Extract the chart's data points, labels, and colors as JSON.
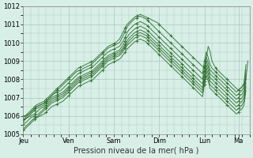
{
  "title": "",
  "xlabel": "Pression niveau de la mer( hPa )",
  "ylabel": "",
  "background_color": "#d8efe8",
  "plot_bg_color": "#d8efe8",
  "grid_color": "#a8c8b8",
  "line_color": "#2d6e2d",
  "marker_color": "#2d6e2d",
  "ylim": [
    1005,
    1012
  ],
  "yticks": [
    1005,
    1006,
    1007,
    1008,
    1009,
    1010,
    1011,
    1012
  ],
  "xtick_labels": [
    "Jeu",
    "Ven",
    "Sam",
    "Dim",
    "Lun",
    "Ma"
  ],
  "xtick_positions": [
    0,
    24,
    48,
    72,
    96,
    114
  ],
  "xlim": [
    0,
    120
  ],
  "series": [
    [
      1006.0,
      1006.0,
      1006.1,
      1006.2,
      1006.3,
      1006.4,
      1006.5,
      1006.6,
      1006.65,
      1006.7,
      1006.75,
      1006.8,
      1006.9,
      1007.0,
      1007.1,
      1007.2,
      1007.3,
      1007.4,
      1007.5,
      1007.6,
      1007.7,
      1007.8,
      1007.9,
      1008.0,
      1008.1,
      1008.2,
      1008.3,
      1008.4,
      1008.5,
      1008.6,
      1008.65,
      1008.7,
      1008.75,
      1008.8,
      1008.85,
      1008.9,
      1008.95,
      1009.0,
      1009.1,
      1009.2,
      1009.3,
      1009.4,
      1009.5,
      1009.6,
      1009.7,
      1009.8,
      1009.85,
      1009.9,
      1009.95,
      1010.0,
      1010.1,
      1010.2,
      1010.4,
      1010.6,
      1010.8,
      1011.0,
      1011.1,
      1011.2,
      1011.3,
      1011.4,
      1011.45,
      1011.5,
      1011.55,
      1011.5,
      1011.45,
      1011.4,
      1011.35,
      1011.3,
      1011.25,
      1011.2,
      1011.15,
      1011.1,
      1011.0,
      1010.9,
      1010.8,
      1010.7,
      1010.6,
      1010.5,
      1010.4,
      1010.3,
      1010.2,
      1010.1,
      1010.0,
      1009.9,
      1009.8,
      1009.7,
      1009.6,
      1009.5,
      1009.4,
      1009.3,
      1009.2,
      1009.1,
      1009.0,
      1008.9,
      1008.8,
      1008.7,
      1008.6,
      1009.2,
      1009.8,
      1009.5,
      1009.0,
      1008.8,
      1008.6,
      1008.5,
      1008.4,
      1008.3,
      1008.2,
      1008.1,
      1008.0,
      1007.9,
      1007.8,
      1007.7,
      1007.6,
      1007.5,
      1007.4,
      1007.5,
      1007.6,
      1007.7,
      1008.0,
      1009.0
    ],
    [
      1006.0,
      1006.0,
      1006.05,
      1006.1,
      1006.2,
      1006.3,
      1006.4,
      1006.5,
      1006.55,
      1006.6,
      1006.65,
      1006.7,
      1006.8,
      1006.9,
      1007.0,
      1007.1,
      1007.2,
      1007.3,
      1007.4,
      1007.5,
      1007.6,
      1007.7,
      1007.8,
      1007.9,
      1008.0,
      1008.1,
      1008.2,
      1008.3,
      1008.4,
      1008.45,
      1008.5,
      1008.55,
      1008.6,
      1008.65,
      1008.7,
      1008.75,
      1008.8,
      1008.9,
      1009.0,
      1009.1,
      1009.2,
      1009.3,
      1009.4,
      1009.5,
      1009.6,
      1009.7,
      1009.75,
      1009.8,
      1009.85,
      1009.9,
      1009.95,
      1010.0,
      1010.2,
      1010.4,
      1010.6,
      1010.85,
      1011.0,
      1011.1,
      1011.2,
      1011.3,
      1011.35,
      1011.4,
      1011.45,
      1011.4,
      1011.35,
      1011.3,
      1011.2,
      1011.1,
      1011.0,
      1010.9,
      1010.8,
      1010.7,
      1010.6,
      1010.5,
      1010.4,
      1010.3,
      1010.2,
      1010.1,
      1010.0,
      1009.9,
      1009.8,
      1009.7,
      1009.6,
      1009.5,
      1009.4,
      1009.3,
      1009.2,
      1009.1,
      1009.0,
      1008.9,
      1008.8,
      1008.7,
      1008.6,
      1008.5,
      1008.4,
      1008.3,
      1009.0,
      1009.5,
      1009.2,
      1008.8,
      1008.6,
      1008.5,
      1008.4,
      1008.3,
      1008.2,
      1008.1,
      1008.0,
      1007.9,
      1007.8,
      1007.7,
      1007.6,
      1007.5,
      1007.4,
      1007.3,
      1007.4,
      1007.5,
      1007.6,
      1007.8,
      1008.8
    ],
    [
      1005.8,
      1005.9,
      1006.0,
      1006.1,
      1006.2,
      1006.3,
      1006.4,
      1006.5,
      1006.55,
      1006.6,
      1006.65,
      1006.7,
      1006.8,
      1006.9,
      1007.0,
      1007.1,
      1007.2,
      1007.25,
      1007.3,
      1007.35,
      1007.4,
      1007.5,
      1007.6,
      1007.7,
      1007.8,
      1007.9,
      1008.0,
      1008.1,
      1008.2,
      1008.3,
      1008.35,
      1008.4,
      1008.45,
      1008.5,
      1008.55,
      1008.6,
      1008.65,
      1008.7,
      1008.8,
      1008.9,
      1009.0,
      1009.1,
      1009.2,
      1009.3,
      1009.4,
      1009.5,
      1009.55,
      1009.6,
      1009.65,
      1009.7,
      1009.75,
      1009.8,
      1009.95,
      1010.1,
      1010.3,
      1010.55,
      1010.7,
      1010.8,
      1010.9,
      1011.0,
      1011.05,
      1011.1,
      1011.15,
      1011.1,
      1011.05,
      1011.0,
      1010.9,
      1010.8,
      1010.7,
      1010.6,
      1010.5,
      1010.4,
      1010.3,
      1010.2,
      1010.1,
      1010.0,
      1009.9,
      1009.8,
      1009.7,
      1009.6,
      1009.5,
      1009.4,
      1009.3,
      1009.2,
      1009.1,
      1009.0,
      1008.9,
      1008.8,
      1008.7,
      1008.6,
      1008.5,
      1008.4,
      1008.3,
      1008.2,
      1008.1,
      1008.0,
      1008.7,
      1009.2,
      1008.9,
      1008.5,
      1008.4,
      1008.3,
      1008.2,
      1008.1,
      1008.0,
      1007.9,
      1007.8,
      1007.7,
      1007.6,
      1007.5,
      1007.4,
      1007.3,
      1007.2,
      1007.1,
      1007.2,
      1007.3,
      1007.4,
      1007.6,
      1008.5
    ],
    [
      1005.8,
      1005.85,
      1005.9,
      1006.0,
      1006.1,
      1006.2,
      1006.3,
      1006.4,
      1006.45,
      1006.5,
      1006.55,
      1006.6,
      1006.7,
      1006.8,
      1006.9,
      1007.0,
      1007.05,
      1007.1,
      1007.15,
      1007.2,
      1007.25,
      1007.3,
      1007.4,
      1007.5,
      1007.6,
      1007.7,
      1007.8,
      1007.9,
      1008.0,
      1008.1,
      1008.15,
      1008.2,
      1008.25,
      1008.3,
      1008.35,
      1008.4,
      1008.45,
      1008.5,
      1008.6,
      1008.7,
      1008.8,
      1008.9,
      1009.0,
      1009.1,
      1009.2,
      1009.3,
      1009.35,
      1009.4,
      1009.45,
      1009.5,
      1009.55,
      1009.6,
      1009.75,
      1009.9,
      1010.1,
      1010.3,
      1010.45,
      1010.55,
      1010.65,
      1010.75,
      1010.8,
      1010.85,
      1010.9,
      1010.85,
      1010.8,
      1010.75,
      1010.65,
      1010.55,
      1010.45,
      1010.35,
      1010.25,
      1010.15,
      1010.05,
      1009.95,
      1009.85,
      1009.75,
      1009.65,
      1009.55,
      1009.45,
      1009.35,
      1009.25,
      1009.15,
      1009.05,
      1008.95,
      1008.85,
      1008.75,
      1008.65,
      1008.55,
      1008.45,
      1008.35,
      1008.25,
      1008.15,
      1008.05,
      1007.95,
      1007.85,
      1007.75,
      1008.45,
      1009.0,
      1008.7,
      1008.3,
      1008.2,
      1008.1,
      1008.0,
      1007.9,
      1007.8,
      1007.7,
      1007.6,
      1007.5,
      1007.4,
      1007.3,
      1007.2,
      1007.1,
      1007.0,
      1006.9,
      1007.0,
      1007.1,
      1007.2,
      1007.4,
      1008.2
    ],
    [
      1005.7,
      1005.8,
      1005.9,
      1005.95,
      1006.0,
      1006.05,
      1006.1,
      1006.2,
      1006.3,
      1006.4,
      1006.45,
      1006.5,
      1006.6,
      1006.7,
      1006.8,
      1006.9,
      1006.95,
      1007.0,
      1007.05,
      1007.1,
      1007.15,
      1007.2,
      1007.3,
      1007.4,
      1007.5,
      1007.6,
      1007.7,
      1007.8,
      1007.9,
      1008.0,
      1008.05,
      1008.1,
      1008.15,
      1008.2,
      1008.25,
      1008.3,
      1008.35,
      1008.4,
      1008.5,
      1008.6,
      1008.7,
      1008.8,
      1008.9,
      1009.0,
      1009.1,
      1009.2,
      1009.25,
      1009.3,
      1009.35,
      1009.4,
      1009.45,
      1009.5,
      1009.6,
      1009.75,
      1009.9,
      1010.1,
      1010.25,
      1010.35,
      1010.45,
      1010.55,
      1010.6,
      1010.65,
      1010.7,
      1010.65,
      1010.6,
      1010.55,
      1010.45,
      1010.35,
      1010.25,
      1010.15,
      1010.05,
      1009.95,
      1009.85,
      1009.75,
      1009.65,
      1009.55,
      1009.45,
      1009.35,
      1009.25,
      1009.15,
      1009.05,
      1008.95,
      1008.85,
      1008.75,
      1008.65,
      1008.55,
      1008.45,
      1008.35,
      1008.25,
      1008.15,
      1008.05,
      1007.95,
      1007.85,
      1007.75,
      1007.65,
      1007.55,
      1008.2,
      1008.8,
      1008.5,
      1008.1,
      1008.0,
      1007.9,
      1007.8,
      1007.7,
      1007.6,
      1007.5,
      1007.4,
      1007.3,
      1007.2,
      1007.1,
      1007.0,
      1006.9,
      1006.8,
      1006.7,
      1006.8,
      1006.9,
      1007.0,
      1007.2,
      1008.0
    ],
    [
      1005.5,
      1005.6,
      1005.7,
      1005.8,
      1005.9,
      1005.95,
      1006.0,
      1006.05,
      1006.1,
      1006.2,
      1006.3,
      1006.4,
      1006.5,
      1006.6,
      1006.7,
      1006.8,
      1006.85,
      1006.9,
      1006.95,
      1007.0,
      1007.05,
      1007.1,
      1007.2,
      1007.3,
      1007.4,
      1007.5,
      1007.6,
      1007.7,
      1007.8,
      1007.9,
      1007.95,
      1008.0,
      1008.05,
      1008.1,
      1008.15,
      1008.2,
      1008.25,
      1008.3,
      1008.4,
      1008.5,
      1008.6,
      1008.7,
      1008.8,
      1008.9,
      1009.0,
      1009.1,
      1009.15,
      1009.2,
      1009.25,
      1009.3,
      1009.35,
      1009.4,
      1009.5,
      1009.65,
      1009.8,
      1009.95,
      1010.1,
      1010.2,
      1010.3,
      1010.4,
      1010.45,
      1010.5,
      1010.55,
      1010.5,
      1010.45,
      1010.4,
      1010.3,
      1010.2,
      1010.1,
      1010.0,
      1009.9,
      1009.8,
      1009.7,
      1009.6,
      1009.5,
      1009.4,
      1009.3,
      1009.2,
      1009.1,
      1009.0,
      1008.9,
      1008.8,
      1008.7,
      1008.6,
      1008.5,
      1008.4,
      1008.3,
      1008.2,
      1008.1,
      1008.0,
      1007.9,
      1007.8,
      1007.7,
      1007.6,
      1007.5,
      1007.4,
      1008.0,
      1008.6,
      1008.3,
      1007.9,
      1007.8,
      1007.7,
      1007.6,
      1007.5,
      1007.4,
      1007.3,
      1007.2,
      1007.1,
      1007.0,
      1006.9,
      1006.8,
      1006.7,
      1006.6,
      1006.5,
      1006.6,
      1006.7,
      1006.8,
      1007.0,
      1007.8
    ],
    [
      1005.3,
      1005.4,
      1005.5,
      1005.6,
      1005.7,
      1005.8,
      1005.9,
      1005.95,
      1006.0,
      1006.1,
      1006.2,
      1006.3,
      1006.4,
      1006.5,
      1006.6,
      1006.7,
      1006.75,
      1006.8,
      1006.85,
      1006.9,
      1006.95,
      1007.0,
      1007.1,
      1007.2,
      1007.3,
      1007.4,
      1007.5,
      1007.6,
      1007.7,
      1007.8,
      1007.85,
      1007.9,
      1007.95,
      1008.0,
      1008.05,
      1008.1,
      1008.15,
      1008.2,
      1008.3,
      1008.4,
      1008.5,
      1008.6,
      1008.7,
      1008.8,
      1008.9,
      1009.0,
      1009.05,
      1009.1,
      1009.15,
      1009.2,
      1009.25,
      1009.3,
      1009.4,
      1009.55,
      1009.7,
      1009.85,
      1009.95,
      1010.05,
      1010.15,
      1010.25,
      1010.3,
      1010.35,
      1010.4,
      1010.35,
      1010.3,
      1010.25,
      1010.15,
      1010.05,
      1009.95,
      1009.85,
      1009.75,
      1009.65,
      1009.55,
      1009.45,
      1009.35,
      1009.25,
      1009.15,
      1009.05,
      1008.95,
      1008.85,
      1008.75,
      1008.65,
      1008.55,
      1008.45,
      1008.35,
      1008.25,
      1008.15,
      1008.05,
      1007.95,
      1007.85,
      1007.75,
      1007.65,
      1007.55,
      1007.45,
      1007.35,
      1007.25,
      1007.9,
      1008.4,
      1008.1,
      1007.7,
      1007.6,
      1007.5,
      1007.4,
      1007.3,
      1007.2,
      1007.1,
      1007.0,
      1006.9,
      1006.8,
      1006.7,
      1006.6,
      1006.5,
      1006.4,
      1006.3,
      1006.4,
      1006.5,
      1006.6,
      1006.8,
      1007.6
    ],
    [
      1005.2,
      1005.3,
      1005.4,
      1005.5,
      1005.6,
      1005.7,
      1005.8,
      1005.9,
      1005.95,
      1006.0,
      1006.05,
      1006.1,
      1006.2,
      1006.3,
      1006.4,
      1006.5,
      1006.55,
      1006.6,
      1006.65,
      1006.7,
      1006.75,
      1006.8,
      1006.9,
      1007.0,
      1007.1,
      1007.2,
      1007.3,
      1007.4,
      1007.5,
      1007.6,
      1007.65,
      1007.7,
      1007.75,
      1007.8,
      1007.85,
      1007.9,
      1007.95,
      1008.0,
      1008.1,
      1008.2,
      1008.3,
      1008.4,
      1008.5,
      1008.6,
      1008.7,
      1008.8,
      1008.85,
      1008.9,
      1008.95,
      1009.0,
      1009.05,
      1009.1,
      1009.2,
      1009.35,
      1009.5,
      1009.65,
      1009.75,
      1009.85,
      1009.95,
      1010.05,
      1010.1,
      1010.15,
      1010.2,
      1010.15,
      1010.1,
      1010.05,
      1009.95,
      1009.85,
      1009.75,
      1009.65,
      1009.55,
      1009.45,
      1009.35,
      1009.25,
      1009.15,
      1009.05,
      1008.95,
      1008.85,
      1008.75,
      1008.65,
      1008.55,
      1008.45,
      1008.35,
      1008.25,
      1008.15,
      1008.05,
      1007.95,
      1007.85,
      1007.75,
      1007.65,
      1007.55,
      1007.45,
      1007.35,
      1007.25,
      1007.15,
      1007.05,
      1007.7,
      1008.2,
      1007.9,
      1007.5,
      1007.4,
      1007.3,
      1007.2,
      1007.1,
      1007.0,
      1006.9,
      1006.8,
      1006.7,
      1006.6,
      1006.5,
      1006.4,
      1006.3,
      1006.2,
      1006.1,
      1006.2,
      1006.3,
      1006.4,
      1006.6,
      1007.4
    ]
  ]
}
